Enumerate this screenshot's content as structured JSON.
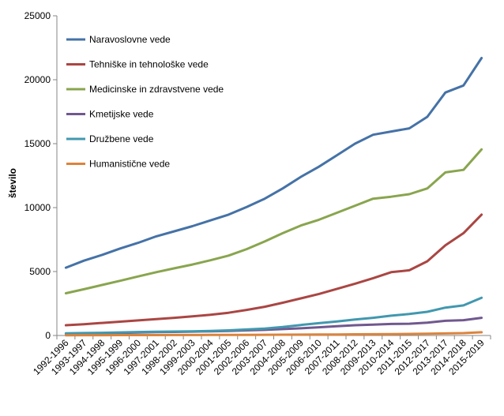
{
  "chart_data": {
    "type": "line",
    "ylabel": "število",
    "xlabel": "",
    "title": "",
    "ylim": [
      0,
      25000
    ],
    "y_ticks": [
      0,
      5000,
      10000,
      15000,
      20000,
      25000
    ],
    "grid": false,
    "legend_position": "top-left",
    "categories": [
      "1992-1996",
      "1993-1997",
      "1994-1998",
      "1995-1999",
      "1996-2000",
      "1997-2001",
      "1998-2002",
      "1999-2003",
      "2000-2004",
      "2001-2005",
      "2002-2006",
      "2003-2007",
      "2004-2008",
      "2005-2009",
      "2006-2010",
      "2007-2011",
      "2008-2012",
      "2009-2013",
      "2010-2014",
      "2011-2015",
      "2012-2017",
      "2013-2017",
      "2014-2018",
      "2015-2019"
    ],
    "series": [
      {
        "name": "Naravoslovne vede",
        "color": "#4572A7",
        "values": [
          5300,
          5850,
          6300,
          6800,
          7250,
          7750,
          8150,
          8550,
          9000,
          9450,
          10050,
          10700,
          11500,
          12400,
          13200,
          14100,
          15000,
          15700,
          15950,
          16200,
          17100,
          19000,
          19550,
          21700
        ]
      },
      {
        "name": "Tehniške in tehnološke vede",
        "color": "#AA4643",
        "values": [
          800,
          880,
          980,
          1080,
          1180,
          1280,
          1380,
          1500,
          1620,
          1780,
          2000,
          2250,
          2560,
          2900,
          3250,
          3650,
          4050,
          4480,
          4950,
          5100,
          5800,
          7050,
          8000,
          9450
        ]
      },
      {
        "name": "Medicinske in zdravstvene vede",
        "color": "#89A54E",
        "values": [
          3300,
          3620,
          3950,
          4280,
          4620,
          4950,
          5250,
          5550,
          5880,
          6250,
          6750,
          7350,
          8000,
          8600,
          9050,
          9600,
          10150,
          10700,
          10850,
          11050,
          11500,
          12750,
          12950,
          14550
        ]
      },
      {
        "name": "Kmetijske vede",
        "color": "#71588F",
        "values": [
          130,
          150,
          170,
          200,
          230,
          260,
          280,
          300,
          330,
          360,
          400,
          440,
          500,
          560,
          640,
          720,
          800,
          850,
          900,
          920,
          1000,
          1150,
          1200,
          1380
        ]
      },
      {
        "name": "Družbene vede",
        "color": "#4198AF",
        "values": [
          170,
          190,
          210,
          240,
          270,
          290,
          310,
          330,
          360,
          400,
          470,
          540,
          660,
          820,
          960,
          1100,
          1250,
          1380,
          1550,
          1680,
          1850,
          2180,
          2350,
          2950
        ]
      },
      {
        "name": "Humanistične vede",
        "color": "#DB843D",
        "values": [
          20,
          22,
          25,
          28,
          30,
          33,
          36,
          40,
          44,
          48,
          52,
          56,
          62,
          68,
          75,
          82,
          90,
          100,
          110,
          125,
          140,
          160,
          185,
          250
        ]
      }
    ]
  }
}
